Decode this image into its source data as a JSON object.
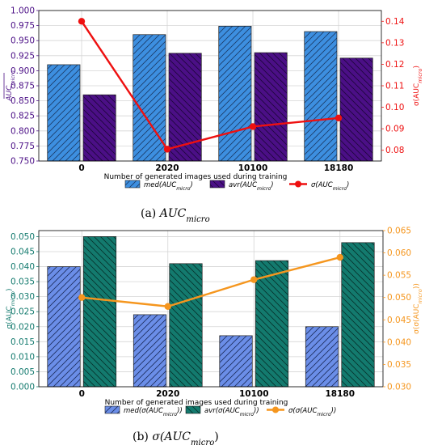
{
  "chart_data": [
    {
      "type": "bar",
      "caption_tag": "(a)",
      "caption_text": "AUC",
      "caption_sub": "micro",
      "xlabel": "Number of generated images used during training",
      "categories": [
        "0",
        "2020",
        "10100",
        "18180"
      ],
      "ylabel": "AUC",
      "ylabel_sub": "micro",
      "ylim": [
        0.75,
        1.0
      ],
      "yticks": [
        "0.750",
        "0.775",
        "0.800",
        "0.825",
        "0.850",
        "0.875",
        "0.900",
        "0.925",
        "0.950",
        "0.975",
        "1.000"
      ],
      "y2label": "σ(AUC",
      "y2label_sub": "micro",
      "y2label_end": ")",
      "y2lim": [
        0.075,
        0.145
      ],
      "y2ticks": [
        "0.08",
        "0.09",
        "0.10",
        "0.11",
        "0.12",
        "0.13",
        "0.14"
      ],
      "grid": true,
      "series": [
        {
          "name": "med(AUC",
          "name_sub": "micro",
          "name_end": ")",
          "kind": "bar",
          "hatch": "/",
          "color": "#3d8fe0",
          "values": [
            0.91,
            0.96,
            0.974,
            0.965
          ]
        },
        {
          "name": "avr(AUC",
          "name_sub": "micro",
          "name_end": ")",
          "kind": "bar",
          "hatch": "\\",
          "color": "#4b0f86",
          "values": [
            0.86,
            0.929,
            0.93,
            0.921
          ]
        },
        {
          "name": "σ(AUC",
          "name_sub": "micro",
          "name_end": ")",
          "kind": "line",
          "axis": "right",
          "color": "#ee1010",
          "values": [
            0.14,
            0.0805,
            0.091,
            0.095
          ]
        }
      ],
      "axis_colors": {
        "left": "#4b0f86",
        "right": "#ee1010"
      }
    },
    {
      "type": "bar",
      "caption_tag": "(b)",
      "caption_text": "σ(AUC",
      "caption_sub": "micro",
      "caption_end": ")",
      "xlabel": "Number of generated images used during training",
      "categories": [
        "0",
        "2020",
        "10100",
        "18180"
      ],
      "ylabel": "σ(AUC",
      "ylabel_sub": "micro",
      "ylabel_end": ")",
      "ylim": [
        0.0,
        0.052
      ],
      "yticks": [
        "0.000",
        "0.005",
        "0.010",
        "0.015",
        "0.020",
        "0.025",
        "0.030",
        "0.035",
        "0.040",
        "0.045",
        "0.050"
      ],
      "y2label": "σ(σ(AUC",
      "y2label_sub": "micro",
      "y2label_end": "))",
      "y2lim": [
        0.03,
        0.065
      ],
      "y2ticks": [
        "0.030",
        "0.035",
        "0.040",
        "0.045",
        "0.050",
        "0.055",
        "0.060",
        "0.065"
      ],
      "grid": true,
      "series": [
        {
          "name": "med(σ(AUC",
          "name_sub": "micro",
          "name_end": "))",
          "kind": "bar",
          "hatch": "/",
          "color": "#6b8ee8",
          "values": [
            0.04,
            0.024,
            0.017,
            0.02
          ]
        },
        {
          "name": "avr(σ(AUC",
          "name_sub": "micro",
          "name_end": "))",
          "kind": "bar",
          "hatch": "\\",
          "color": "#137a6e",
          "values": [
            0.05,
            0.041,
            0.042,
            0.048
          ]
        },
        {
          "name": "σ(σ(AUC",
          "name_sub": "micro",
          "name_end": "))",
          "kind": "line",
          "axis": "right",
          "color": "#f5961e",
          "values": [
            0.05,
            0.048,
            0.054,
            0.059
          ]
        }
      ],
      "axis_colors": {
        "left": "#137a6e",
        "right": "#f5961e"
      }
    }
  ]
}
